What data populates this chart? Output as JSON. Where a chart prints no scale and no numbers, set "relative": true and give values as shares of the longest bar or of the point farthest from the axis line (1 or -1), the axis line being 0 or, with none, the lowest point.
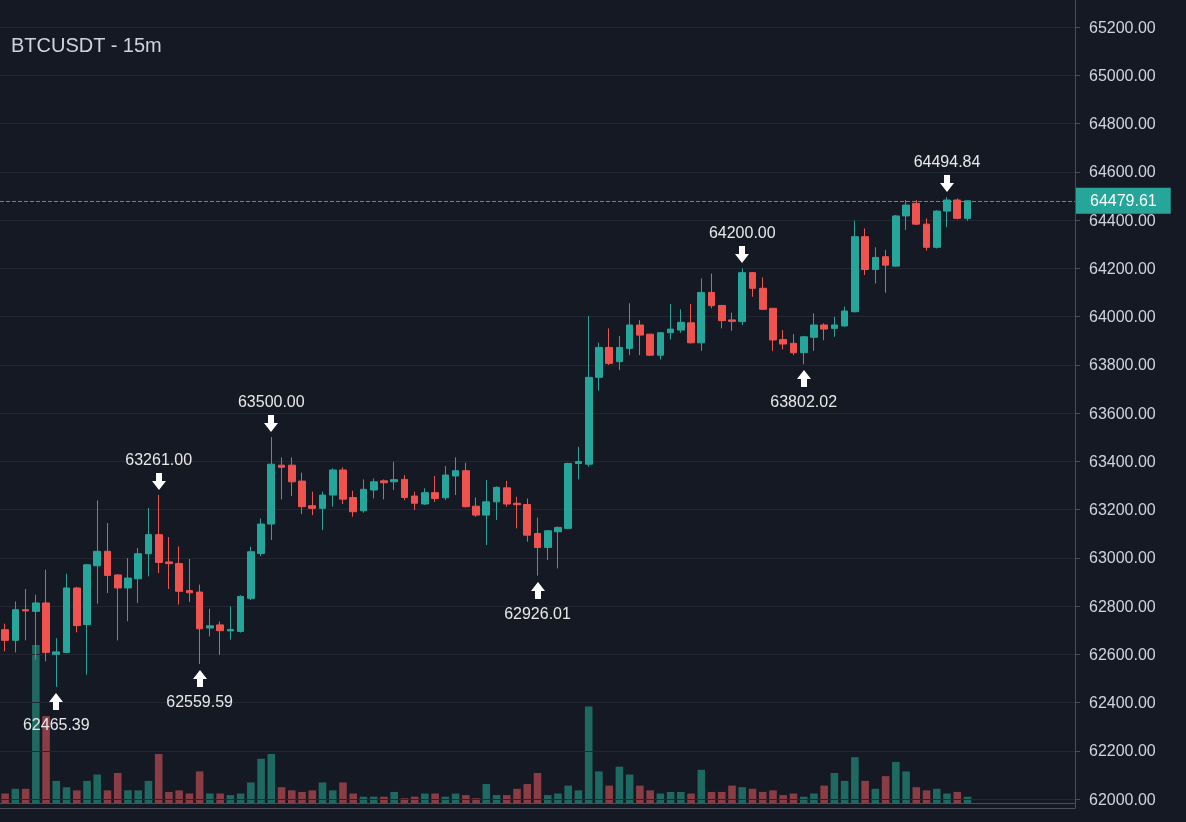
{
  "chart_data": [
    {
      "type": "candlestick",
      "title": "BTCUSDT - 15m",
      "categories": [
        null,
        null,
        null,
        null,
        null,
        null,
        null,
        null,
        null,
        null,
        null,
        null,
        null,
        null,
        null,
        null,
        null,
        null,
        null,
        null,
        null,
        null,
        null,
        null,
        null,
        null,
        null,
        null,
        null,
        null,
        null,
        null,
        null,
        null,
        null,
        null,
        null,
        null,
        null,
        null,
        null,
        null,
        null,
        null,
        null,
        null,
        null,
        null,
        null,
        null,
        null,
        null,
        null,
        null,
        null,
        null,
        null,
        null,
        null,
        null,
        null,
        null,
        null,
        null,
        null,
        null,
        null,
        null,
        null,
        null,
        null,
        null,
        null,
        null,
        null,
        null,
        null,
        null,
        null,
        null,
        null,
        null,
        null,
        null,
        null,
        null,
        null,
        null,
        null,
        null,
        null,
        null,
        null,
        null,
        null,
        null,
        null,
        null,
        null,
        null,
        null,
        null,
        null,
        null,
        null
      ],
      "ohlc": [
        [
          62702,
          62727,
          62612,
          62658
        ],
        [
          62658,
          62819,
          62608,
          62785
        ],
        [
          62785,
          62871,
          62658,
          62780
        ],
        [
          62778,
          62847,
          62578,
          62813
        ],
        [
          62813,
          62951,
          62571,
          62608
        ],
        [
          62600,
          62667,
          62465.39,
          62610
        ],
        [
          62608,
          62934,
          62605,
          62875
        ],
        [
          62875,
          62880,
          62691,
          62719
        ],
        [
          62723,
          62975,
          62515,
          62971
        ],
        [
          62967,
          63238,
          62810,
          63027
        ],
        [
          63027,
          63144,
          62854,
          62927
        ],
        [
          62929,
          62932,
          62658,
          62875
        ],
        [
          62875,
          62999,
          62737,
          62916
        ],
        [
          62913,
          63041,
          62813,
          63017
        ],
        [
          63017,
          63206,
          62923,
          63096
        ],
        [
          63096,
          63261,
          62937,
          62981
        ],
        [
          62983,
          63086,
          62871,
          62976
        ],
        [
          62976,
          63047,
          62806,
          62861
        ],
        [
          62864,
          62995,
          62817,
          62855
        ],
        [
          62858,
          62889,
          62559.59,
          62706
        ],
        [
          62709,
          62789,
          62674,
          62718
        ],
        [
          62722,
          62736,
          62598,
          62698
        ],
        [
          62697,
          62799,
          62661,
          62703
        ],
        [
          62695,
          62845,
          62690,
          62840
        ],
        [
          62832,
          63046,
          62825,
          63025
        ],
        [
          63018,
          63163,
          63007,
          63140
        ],
        [
          63140,
          63500,
          63074,
          63388
        ],
        [
          63384,
          63416,
          63242,
          63375
        ],
        [
          63384,
          63416,
          63256,
          63315
        ],
        [
          63318,
          63353,
          63181,
          63212
        ],
        [
          63216,
          63274,
          63177,
          63205
        ],
        [
          63205,
          63274,
          63115,
          63260
        ],
        [
          63260,
          63371,
          63212,
          63364
        ],
        [
          63364,
          63375,
          63223,
          63243
        ],
        [
          63250,
          63278,
          63170,
          63191
        ],
        [
          63195,
          63325,
          63187,
          63284
        ],
        [
          63281,
          63329,
          63246,
          63315
        ],
        [
          63319,
          63325,
          63242,
          63311
        ],
        [
          63315,
          63398,
          63281,
          63324
        ],
        [
          63325,
          63343,
          63239,
          63250
        ],
        [
          63256,
          63274,
          63198,
          63226
        ],
        [
          63223,
          63288,
          63219,
          63270
        ],
        [
          63270,
          63339,
          63232,
          63246
        ],
        [
          63249,
          63380,
          63239,
          63343
        ],
        [
          63339,
          63416,
          63260,
          63361
        ],
        [
          63361,
          63394,
          63208,
          63212
        ],
        [
          63214,
          63250,
          63170,
          63177
        ],
        [
          63177,
          63322,
          63053,
          63232
        ],
        [
          63232,
          63296,
          63157,
          63292
        ],
        [
          63290,
          63319,
          63212,
          63223
        ],
        [
          63226,
          63253,
          63122,
          63220
        ],
        [
          63221,
          63246,
          63067,
          63094
        ],
        [
          63101,
          63167,
          62926.01,
          63043
        ],
        [
          63043,
          63115,
          62991,
          63112
        ],
        [
          63108,
          63130,
          62956,
          63126
        ],
        [
          63122,
          63394,
          63120,
          63391
        ],
        [
          63391,
          63460,
          63325,
          63399
        ],
        [
          63388,
          64002,
          63378,
          63748
        ],
        [
          63748,
          63892,
          63693,
          63872
        ],
        [
          63872,
          63951,
          63799,
          63806
        ],
        [
          63813,
          63919,
          63778,
          63872
        ],
        [
          63868,
          64055,
          63840,
          63965
        ],
        [
          63965,
          63985,
          63840,
          63923
        ],
        [
          63927,
          63928,
          63836,
          63840
        ],
        [
          63840,
          63935,
          63822,
          63933
        ],
        [
          63933,
          64052,
          63905,
          63948
        ],
        [
          63944,
          64030,
          63933,
          63976
        ],
        [
          63974,
          64052,
          63889,
          63891
        ],
        [
          63891,
          64158,
          63858,
          64100
        ],
        [
          64100,
          64178,
          64034,
          64045
        ],
        [
          64046,
          64048,
          63951,
          63983
        ],
        [
          63986,
          64016,
          63941,
          63980
        ],
        [
          63979,
          64200,
          63965,
          64182
        ],
        [
          64182,
          64185,
          64082,
          64117
        ],
        [
          64117,
          64162,
          64027,
          64030
        ],
        [
          64034,
          64036,
          63858,
          63903
        ],
        [
          63905,
          63944,
          63864,
          63886
        ],
        [
          63889,
          63927,
          63840,
          63850
        ],
        [
          63850,
          63920,
          63802.02,
          63916
        ],
        [
          63914,
          64013,
          63858,
          63965
        ],
        [
          63965,
          63972,
          63902,
          63948
        ],
        [
          63951,
          63999,
          63916,
          63965
        ],
        [
          63961,
          64041,
          63958,
          64023
        ],
        [
          64020,
          64397,
          64017,
          64331
        ],
        [
          64331,
          64365,
          64172,
          64195
        ],
        [
          64195,
          64287,
          64137,
          64245
        ],
        [
          64248,
          64276,
          64099,
          64213
        ],
        [
          64209,
          64421,
          64206,
          64417
        ],
        [
          64417,
          64483,
          64359,
          64462
        ],
        [
          64469,
          64483,
          64379,
          64383
        ],
        [
          64383,
          64407,
          64273,
          64287
        ],
        [
          64287,
          64441,
          64282,
          64437
        ],
        [
          64437,
          64494.84,
          64370,
          64483
        ],
        [
          64483,
          64490,
          64403,
          64407
        ],
        [
          64407,
          64480,
          64397,
          64479.61
        ],
        null,
        null,
        null,
        null,
        null,
        null,
        null,
        null,
        null,
        null
      ],
      "colors": [
        "#ef5350",
        "#26a69a",
        "#ef5350",
        "#26a69a",
        "#ef5350",
        "#26a69a",
        "#26a69a",
        "#ef5350",
        "#26a69a",
        "#26a69a",
        "#ef5350",
        "#ef5350",
        "#26a69a",
        "#26a69a",
        "#26a69a",
        "#ef5350",
        "#ef5350",
        "#ef5350",
        "#ef5350",
        "#ef5350",
        "#26a69a",
        "#ef5350",
        "#26a69a",
        "#26a69a",
        "#26a69a",
        "#26a69a",
        "#26a69a",
        "#ef5350",
        "#ef5350",
        "#ef5350",
        "#ef5350",
        "#26a69a",
        "#26a69a",
        "#ef5350",
        "#ef5350",
        "#26a69a",
        "#26a69a",
        "#ef5350",
        "#26a69a",
        "#ef5350",
        "#ef5350",
        "#26a69a",
        "#ef5350",
        "#26a69a",
        "#26a69a",
        "#ef5350",
        "#ef5350",
        "#26a69a",
        "#26a69a",
        "#ef5350",
        "#ef5350",
        "#ef5350",
        "#ef5350",
        "#26a69a",
        "#26a69a",
        "#26a69a",
        "#26a69a",
        "#26a69a",
        "#26a69a",
        "#ef5350",
        "#26a69a",
        "#26a69a",
        "#ef5350",
        "#ef5350",
        "#26a69a",
        "#26a69a",
        "#26a69a",
        "#ef5350",
        "#26a69a",
        "#ef5350",
        "#ef5350",
        "#ef5350",
        "#26a69a",
        "#ef5350",
        "#ef5350",
        "#ef5350",
        "#ef5350",
        "#ef5350",
        "#26a69a",
        "#26a69a",
        "#ef5350",
        "#26a69a",
        "#26a69a",
        "#26a69a",
        "#ef5350",
        "#26a69a",
        "#ef5350",
        "#26a69a",
        "#26a69a",
        "#ef5350",
        "#ef5350",
        "#26a69a",
        "#26a69a",
        "#ef5350",
        "#26a69a",
        null,
        null,
        null,
        null,
        null,
        null,
        null,
        null,
        null,
        null
      ],
      "ylim": [
        61963,
        65312
      ],
      "yticks": [
        {
          "value": 62000,
          "label": "62000.00"
        },
        {
          "value": 62200,
          "label": "62200.00"
        },
        {
          "value": 62400,
          "label": "62400.00"
        },
        {
          "value": 62600,
          "label": "62600.00"
        },
        {
          "value": 62800,
          "label": "62800.00"
        },
        {
          "value": 63000,
          "label": "63000.00"
        },
        {
          "value": 63200,
          "label": "63200.00"
        },
        {
          "value": 63400,
          "label": "63400.00"
        },
        {
          "value": 63600,
          "label": "63600.00"
        },
        {
          "value": 63800,
          "label": "63800.00"
        },
        {
          "value": 64000,
          "label": "64000.00"
        },
        {
          "value": 64200,
          "label": "64200.00"
        },
        {
          "value": 64400,
          "label": "64400.00"
        },
        {
          "value": 64600,
          "label": "64600.00"
        },
        {
          "value": 64800,
          "label": "64800.00"
        },
        {
          "value": 65000,
          "label": "65000.00"
        },
        {
          "value": 65200,
          "label": "65200.00"
        }
      ],
      "grid": "y",
      "tick_labels": "y",
      "ref_lines": [
        {
          "axis": "y",
          "value": 64479.61,
          "label": "64479.61",
          "color": "#26a69a",
          "line_style": "dashed"
        }
      ],
      "annotations": [
        {
          "text": "62465.39",
          "y": 62465.39
        },
        {
          "text": "63261.00",
          "y": 63261
        },
        {
          "text": "62559.59",
          "y": 62559.59
        },
        {
          "text": "63500.00",
          "y": 63500
        },
        {
          "text": "62926.01",
          "y": 62926.01
        },
        {
          "text": "64200.00",
          "y": 64200
        },
        {
          "text": "63802.02",
          "y": 63802.02
        },
        {
          "text": "64494.84",
          "y": 64494.84
        }
      ]
    },
    {
      "type": "bar",
      "relative": true,
      "categories": [
        null,
        null,
        null,
        null,
        null,
        null,
        null,
        null,
        null,
        null,
        null,
        null,
        null,
        null,
        null,
        null,
        null,
        null,
        null,
        null,
        null,
        null,
        null,
        null,
        null,
        null,
        null,
        null,
        null,
        null,
        null,
        null,
        null,
        null,
        null,
        null,
        null,
        null,
        null,
        null,
        null,
        null,
        null,
        null,
        null,
        null,
        null,
        null,
        null,
        null,
        null,
        null,
        null,
        null,
        null,
        null,
        null,
        null,
        null,
        null,
        null,
        null,
        null,
        null,
        null,
        null,
        null,
        null,
        null,
        null,
        null,
        null,
        null,
        null,
        null,
        null,
        null,
        null,
        null,
        null,
        null,
        null,
        null,
        null,
        null,
        null,
        null,
        null,
        null,
        null,
        null,
        null,
        null,
        null,
        null,
        null,
        null,
        null,
        null,
        null,
        null,
        null,
        null,
        null,
        null
      ],
      "values": [
        0.06,
        0.09,
        0.09,
        1,
        0.55,
        0.14,
        0.1,
        0.08,
        0.14,
        0.18,
        0.08,
        0.19,
        0.08,
        0.08,
        0.14,
        0.31,
        0.07,
        0.08,
        0.06,
        0.2,
        0.06,
        0.06,
        0.05,
        0.06,
        0.13,
        0.28,
        0.31,
        0.1,
        0.08,
        0.07,
        0.08,
        0.13,
        0.08,
        0.13,
        0.06,
        0.04,
        0.04,
        0.04,
        0.07,
        0.03,
        0.04,
        0.06,
        0.06,
        0.04,
        0.06,
        0.05,
        0.03,
        0.12,
        0.05,
        0.05,
        0.09,
        0.12,
        0.19,
        0.05,
        0.06,
        0.11,
        0.08,
        0.61,
        0.2,
        0.11,
        0.23,
        0.18,
        0.11,
        0.08,
        0.06,
        0.07,
        0.07,
        0.06,
        0.21,
        0.07,
        0.07,
        0.11,
        0.1,
        0.09,
        0.07,
        0.08,
        0.05,
        0.06,
        0.04,
        0.06,
        0.11,
        0.19,
        0.14,
        0.29,
        0.14,
        0.09,
        0.17,
        0.26,
        0.2,
        0.1,
        0.08,
        0.09,
        0.06,
        0.07,
        0.04,
        null,
        null,
        null,
        null,
        null,
        null,
        null,
        null,
        null,
        null
      ],
      "colors": [
        "#8a3d44",
        "#1e6a63",
        "#8a3d44",
        "#1e6a63",
        "#8a3d44",
        "#1e6a63",
        "#1e6a63",
        "#8a3d44",
        "#1e6a63",
        "#1e6a63",
        "#8a3d44",
        "#8a3d44",
        "#1e6a63",
        "#1e6a63",
        "#1e6a63",
        "#8a3d44",
        "#8a3d44",
        "#8a3d44",
        "#8a3d44",
        "#8a3d44",
        "#1e6a63",
        "#8a3d44",
        "#1e6a63",
        "#1e6a63",
        "#1e6a63",
        "#1e6a63",
        "#1e6a63",
        "#8a3d44",
        "#8a3d44",
        "#8a3d44",
        "#8a3d44",
        "#1e6a63",
        "#1e6a63",
        "#8a3d44",
        "#8a3d44",
        "#1e6a63",
        "#1e6a63",
        "#8a3d44",
        "#1e6a63",
        "#8a3d44",
        "#8a3d44",
        "#1e6a63",
        "#8a3d44",
        "#1e6a63",
        "#1e6a63",
        "#8a3d44",
        "#8a3d44",
        "#1e6a63",
        "#1e6a63",
        "#8a3d44",
        "#8a3d44",
        "#8a3d44",
        "#8a3d44",
        "#1e6a63",
        "#1e6a63",
        "#1e6a63",
        "#1e6a63",
        "#1e6a63",
        "#1e6a63",
        "#8a3d44",
        "#1e6a63",
        "#1e6a63",
        "#8a3d44",
        "#8a3d44",
        "#1e6a63",
        "#1e6a63",
        "#1e6a63",
        "#8a3d44",
        "#1e6a63",
        "#8a3d44",
        "#8a3d44",
        "#8a3d44",
        "#1e6a63",
        "#8a3d44",
        "#8a3d44",
        "#8a3d44",
        "#8a3d44",
        "#8a3d44",
        "#1e6a63",
        "#1e6a63",
        "#8a3d44",
        "#1e6a63",
        "#1e6a63",
        "#1e6a63",
        "#8a3d44",
        "#1e6a63",
        "#8a3d44",
        "#1e6a63",
        "#1e6a63",
        "#8a3d44",
        "#8a3d44",
        "#1e6a63",
        "#1e6a63",
        "#8a3d44",
        "#1e6a63",
        null,
        null,
        null,
        null,
        null,
        null,
        null,
        null,
        null,
        null
      ]
    }
  ]
}
